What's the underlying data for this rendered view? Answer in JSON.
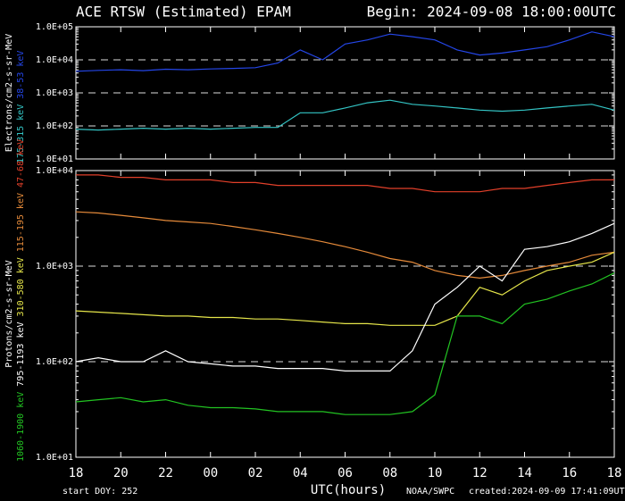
{
  "title": "ACE RTSW (Estimated) EPAM",
  "begin": "Begin: 2024-09-08 18:00:00UTC",
  "start_doy": "start DOY:  252",
  "source": "NOAA/SWPC",
  "created": "created:2024-09-09 17:41:09UTC",
  "chart_data": [
    {
      "type": "line",
      "ylabel": "Electrons/cm2-s-sr-MeV",
      "log_scale": true,
      "xlim": [
        0,
        24
      ],
      "ylim": [
        10,
        100000
      ],
      "yticks": [
        {
          "value": 10,
          "label": "1.0E+01"
        },
        {
          "value": 100,
          "label": "1.0E+02"
        },
        {
          "value": 1000,
          "label": "1.0E+03"
        },
        {
          "value": 10000,
          "label": "1.0E+04"
        },
        {
          "value": 100000,
          "label": "1.0E+05"
        }
      ],
      "dashed_lines": [
        100,
        1000,
        10000
      ],
      "x": [
        0,
        1,
        2,
        3,
        4,
        5,
        6,
        7,
        8,
        9,
        10,
        11,
        12,
        13,
        14,
        15,
        16,
        17,
        18,
        19,
        20,
        21,
        22,
        23,
        24
      ],
      "series": [
        {
          "name": "38-53 keV",
          "color": "#2446e8",
          "values": [
            4500,
            4800,
            5000,
            4700,
            5200,
            5000,
            5300,
            5500,
            5800,
            8000,
            20000,
            10000,
            30000,
            40000,
            60000,
            50000,
            40000,
            20000,
            14000,
            16000,
            20000,
            25000,
            40000,
            70000,
            50000
          ]
        },
        {
          "name": "175-315 keV",
          "color": "#33c4c4",
          "values": [
            80,
            75,
            80,
            85,
            80,
            85,
            80,
            85,
            90,
            90,
            250,
            250,
            350,
            500,
            600,
            450,
            400,
            350,
            300,
            280,
            300,
            350,
            400,
            450,
            300
          ]
        }
      ]
    },
    {
      "type": "line",
      "ylabel": "Protons/cm2-s-sr-MeV",
      "xlabel": "UTC(hours)",
      "log_scale": true,
      "xlim": [
        0,
        24
      ],
      "ylim": [
        10,
        10000
      ],
      "xticks": [
        {
          "value": 0,
          "label": "18"
        },
        {
          "value": 2,
          "label": "20"
        },
        {
          "value": 4,
          "label": "22"
        },
        {
          "value": 6,
          "label": "00"
        },
        {
          "value": 8,
          "label": "02"
        },
        {
          "value": 10,
          "label": "04"
        },
        {
          "value": 12,
          "label": "06"
        },
        {
          "value": 14,
          "label": "08"
        },
        {
          "value": 16,
          "label": "10"
        },
        {
          "value": 18,
          "label": "12"
        },
        {
          "value": 20,
          "label": "14"
        },
        {
          "value": 22,
          "label": "16"
        },
        {
          "value": 24,
          "label": "18"
        }
      ],
      "yticks": [
        {
          "value": 10,
          "label": "1.0E+01"
        },
        {
          "value": 100,
          "label": "1.0E+02"
        },
        {
          "value": 1000,
          "label": "1.0E+03"
        },
        {
          "value": 10000,
          "label": "1.0E+04"
        }
      ],
      "dashed_lines": [
        100,
        1000
      ],
      "x": [
        0,
        1,
        2,
        3,
        4,
        5,
        6,
        7,
        8,
        9,
        10,
        11,
        12,
        13,
        14,
        15,
        16,
        17,
        18,
        19,
        20,
        21,
        22,
        23,
        24
      ],
      "series": [
        {
          "name": "47-68 keV",
          "color": "#e2402a",
          "values": [
            9000,
            9000,
            8500,
            8500,
            8000,
            8000,
            8000,
            7500,
            7500,
            7000,
            7000,
            7000,
            7000,
            7000,
            6500,
            6500,
            6000,
            6000,
            6000,
            6500,
            6500,
            7000,
            7500,
            8000,
            8000
          ]
        },
        {
          "name": "115-195 keV",
          "color": "#e58a3a",
          "values": [
            3700,
            3600,
            3400,
            3200,
            3000,
            2900,
            2800,
            2600,
            2400,
            2200,
            2000,
            1800,
            1600,
            1400,
            1200,
            1100,
            900,
            800,
            750,
            800,
            900,
            1000,
            1100,
            1300,
            1400
          ]
        },
        {
          "name": "310-580 keV",
          "color": "#e6e64a",
          "values": [
            340,
            330,
            320,
            310,
            300,
            300,
            290,
            290,
            280,
            280,
            270,
            260,
            250,
            250,
            240,
            240,
            240,
            300,
            600,
            500,
            700,
            900,
            1000,
            1100,
            1400
          ]
        },
        {
          "name": "795-1193 keV",
          "color": "#ffffff",
          "values": [
            100,
            110,
            100,
            100,
            130,
            100,
            95,
            90,
            90,
            85,
            85,
            85,
            80,
            80,
            80,
            130,
            400,
            600,
            1000,
            700,
            1500,
            1600,
            1800,
            2200,
            2800
          ]
        },
        {
          "name": "1060-1900 keV",
          "color": "#22c422",
          "values": [
            38,
            40,
            42,
            38,
            40,
            35,
            33,
            33,
            32,
            30,
            30,
            30,
            28,
            28,
            28,
            30,
            45,
            300,
            300,
            250,
            400,
            450,
            550,
            650,
            850
          ]
        }
      ]
    }
  ]
}
